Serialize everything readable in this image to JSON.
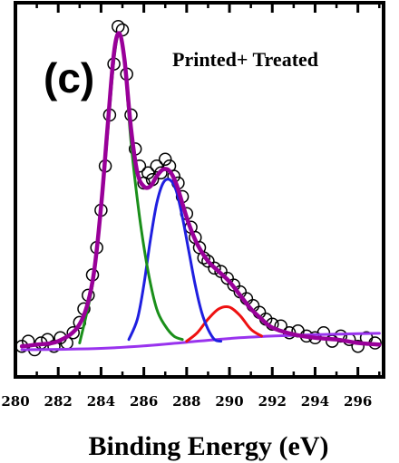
{
  "chart_data": {
    "type": "line",
    "title": "",
    "panel_label": "(c)",
    "annotation": "Printed+ Treated",
    "xlabel": "Binding Energy (eV)",
    "ylabel": "",
    "xlim": [
      280,
      297.2
    ],
    "ylim": [
      -0.07,
      1.03
    ],
    "xticks": [
      280,
      282,
      284,
      286,
      288,
      290,
      292,
      294,
      296
    ],
    "xtick_labels": [
      "280",
      "282",
      "284",
      "286",
      "288",
      "290",
      "292",
      "294",
      "296"
    ],
    "yticks_shown": false,
    "colors": {
      "data_markers": "#000000",
      "envelope": "#990099",
      "background": "#9933ee",
      "peak_1": "#1a8f1a",
      "peak_2": "#1f1fe0",
      "peak_3": "#ee1111"
    },
    "series": [
      {
        "role": "fit-envelope",
        "x": [
          280.3,
          281,
          282,
          283,
          283.6,
          284,
          284.3,
          284.6,
          284.85,
          285.1,
          285.4,
          285.7,
          286,
          286.3,
          286.6,
          286.9,
          287.2,
          287.5,
          287.8,
          288.1,
          288.5,
          289,
          289.5,
          290,
          290.5,
          291,
          291.5,
          292,
          293,
          294,
          295,
          296,
          297
        ],
        "y": [
          0.02,
          0.025,
          0.035,
          0.085,
          0.21,
          0.43,
          0.66,
          0.88,
          0.94,
          0.86,
          0.66,
          0.53,
          0.49,
          0.49,
          0.52,
          0.54,
          0.535,
          0.5,
          0.44,
          0.38,
          0.32,
          0.27,
          0.24,
          0.21,
          0.17,
          0.13,
          0.1,
          0.075,
          0.055,
          0.045,
          0.04,
          0.03,
          0.025
        ]
      },
      {
        "role": "fit-background",
        "x": [
          280.3,
          282,
          284,
          286,
          288,
          290,
          292,
          294,
          296,
          297
        ],
        "y": [
          0.01,
          0.011,
          0.014,
          0.021,
          0.032,
          0.043,
          0.05,
          0.054,
          0.057,
          0.058
        ]
      },
      {
        "role": "fit-component",
        "x": [
          283,
          283.6,
          284,
          284.3,
          284.6,
          284.85,
          285.1,
          285.4,
          285.8,
          286.2,
          286.6,
          287,
          287.4,
          287.8
        ],
        "y": [
          0.03,
          0.2,
          0.42,
          0.64,
          0.86,
          0.94,
          0.86,
          0.62,
          0.4,
          0.24,
          0.13,
          0.08,
          0.05,
          0.04
        ]
      },
      {
        "role": "fit-component",
        "x": [
          285.3,
          285.7,
          286,
          286.3,
          286.6,
          286.9,
          287.2,
          287.5,
          287.8,
          288.1,
          288.4,
          288.7,
          289,
          289.3,
          289.6
        ],
        "y": [
          0.04,
          0.1,
          0.2,
          0.33,
          0.44,
          0.5,
          0.51,
          0.48,
          0.4,
          0.3,
          0.2,
          0.12,
          0.07,
          0.04,
          0.035
        ]
      },
      {
        "role": "fit-component",
        "x": [
          288,
          288.5,
          289,
          289.5,
          290,
          290.5,
          291,
          291.5
        ],
        "y": [
          0.035,
          0.06,
          0.1,
          0.13,
          0.135,
          0.11,
          0.07,
          0.05
        ]
      },
      {
        "role": "measured-data",
        "x": [
          280.3,
          280.6,
          280.9,
          281.2,
          281.5,
          281.8,
          282.1,
          282.4,
          282.7,
          283,
          283.2,
          283.4,
          283.6,
          283.8,
          284,
          284.2,
          284.4,
          284.6,
          284.8,
          285,
          285.2,
          285.4,
          285.6,
          285.8,
          286,
          286.2,
          286.4,
          286.6,
          286.8,
          287,
          287.2,
          287.4,
          287.6,
          287.8,
          288,
          288.2,
          288.4,
          288.6,
          288.8,
          289,
          289.3,
          289.6,
          289.9,
          290.2,
          290.5,
          290.8,
          291.1,
          291.4,
          291.7,
          292,
          292.4,
          292.8,
          293.2,
          293.6,
          294,
          294.4,
          294.8,
          295.2,
          295.6,
          296,
          296.4,
          296.8
        ],
        "y": [
          0.02,
          0.035,
          0.01,
          0.03,
          0.04,
          0.02,
          0.045,
          0.03,
          0.06,
          0.09,
          0.13,
          0.17,
          0.23,
          0.31,
          0.42,
          0.55,
          0.7,
          0.85,
          0.96,
          0.95,
          0.82,
          0.7,
          0.6,
          0.55,
          0.5,
          0.53,
          0.51,
          0.55,
          0.53,
          0.57,
          0.55,
          0.52,
          0.5,
          0.46,
          0.41,
          0.37,
          0.34,
          0.31,
          0.28,
          0.27,
          0.25,
          0.24,
          0.22,
          0.2,
          0.18,
          0.16,
          0.14,
          0.12,
          0.1,
          0.085,
          0.08,
          0.06,
          0.065,
          0.05,
          0.045,
          0.06,
          0.035,
          0.05,
          0.04,
          0.02,
          0.045,
          0.03
        ]
      }
    ]
  }
}
